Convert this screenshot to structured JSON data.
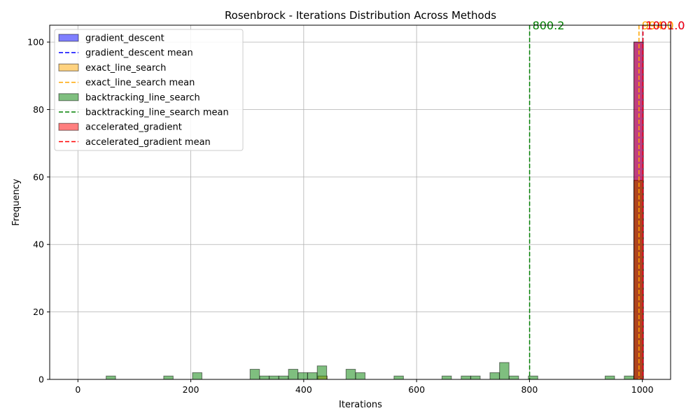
{
  "chart_data": {
    "type": "bar",
    "title": "Rosenbrock - Iterations Distribution Across Methods",
    "xlabel": "Iterations",
    "ylabel": "Frequency",
    "xlim": [
      -50,
      1050
    ],
    "ylim": [
      0,
      105
    ],
    "x_ticks": [
      0,
      200,
      400,
      600,
      800,
      1000
    ],
    "y_ticks": [
      0,
      20,
      40,
      60,
      80,
      100
    ],
    "grid": true,
    "legend_position": "top-left",
    "bin_width": 16.7,
    "series": [
      {
        "name": "gradient_descent",
        "color": "#0000ff",
        "bins": [
          {
            "start": 985,
            "count": 100
          }
        ],
        "mean_label": "1001.0",
        "mean_value": 1001.0,
        "mean_color": "#0000ff"
      },
      {
        "name": "exact_line_search",
        "color": "#ffa500",
        "bins": [
          {
            "start": 425,
            "count": 1
          },
          {
            "start": 985,
            "count": 59
          }
        ],
        "mean_label": "994.0",
        "mean_value": 994.0,
        "mean_color": "#ffa500"
      },
      {
        "name": "backtracking_line_search",
        "color": "#008000",
        "bins": [
          {
            "start": 50,
            "count": 1
          },
          {
            "start": 152,
            "count": 1
          },
          {
            "start": 203,
            "count": 2
          },
          {
            "start": 305,
            "count": 3
          },
          {
            "start": 322,
            "count": 1
          },
          {
            "start": 339,
            "count": 1
          },
          {
            "start": 356,
            "count": 1
          },
          {
            "start": 373,
            "count": 3
          },
          {
            "start": 390,
            "count": 2
          },
          {
            "start": 407,
            "count": 2
          },
          {
            "start": 424,
            "count": 4
          },
          {
            "start": 475,
            "count": 3
          },
          {
            "start": 492,
            "count": 2
          },
          {
            "start": 560,
            "count": 1
          },
          {
            "start": 645,
            "count": 1
          },
          {
            "start": 679,
            "count": 1
          },
          {
            "start": 696,
            "count": 1
          },
          {
            "start": 730,
            "count": 2
          },
          {
            "start": 747,
            "count": 5
          },
          {
            "start": 764,
            "count": 1
          },
          {
            "start": 798,
            "count": 1
          },
          {
            "start": 934,
            "count": 1
          },
          {
            "start": 968,
            "count": 1
          },
          {
            "start": 985,
            "count": 59
          }
        ],
        "mean_label": "800.2",
        "mean_value": 800.2,
        "mean_color": "#008000"
      },
      {
        "name": "accelerated_gradient",
        "color": "#ff0000",
        "bins": [
          {
            "start": 985,
            "count": 100
          }
        ],
        "mean_label": "1001.0",
        "mean_value": 1001.0,
        "mean_color": "#ff0000"
      }
    ],
    "legend": [
      {
        "label": "gradient_descent",
        "kind": "patch",
        "color": "#0000ff"
      },
      {
        "label": "gradient_descent mean",
        "kind": "line",
        "color": "#0000ff"
      },
      {
        "label": "exact_line_search",
        "kind": "patch",
        "color": "#ffa500"
      },
      {
        "label": "exact_line_search mean",
        "kind": "line",
        "color": "#ffa500"
      },
      {
        "label": "backtracking_line_search",
        "kind": "patch",
        "color": "#008000"
      },
      {
        "label": "backtracking_line_search mean",
        "kind": "line",
        "color": "#008000"
      },
      {
        "label": "accelerated_gradient",
        "kind": "patch",
        "color": "#ff0000"
      },
      {
        "label": "accelerated_gradient mean",
        "kind": "line",
        "color": "#ff0000"
      }
    ]
  }
}
